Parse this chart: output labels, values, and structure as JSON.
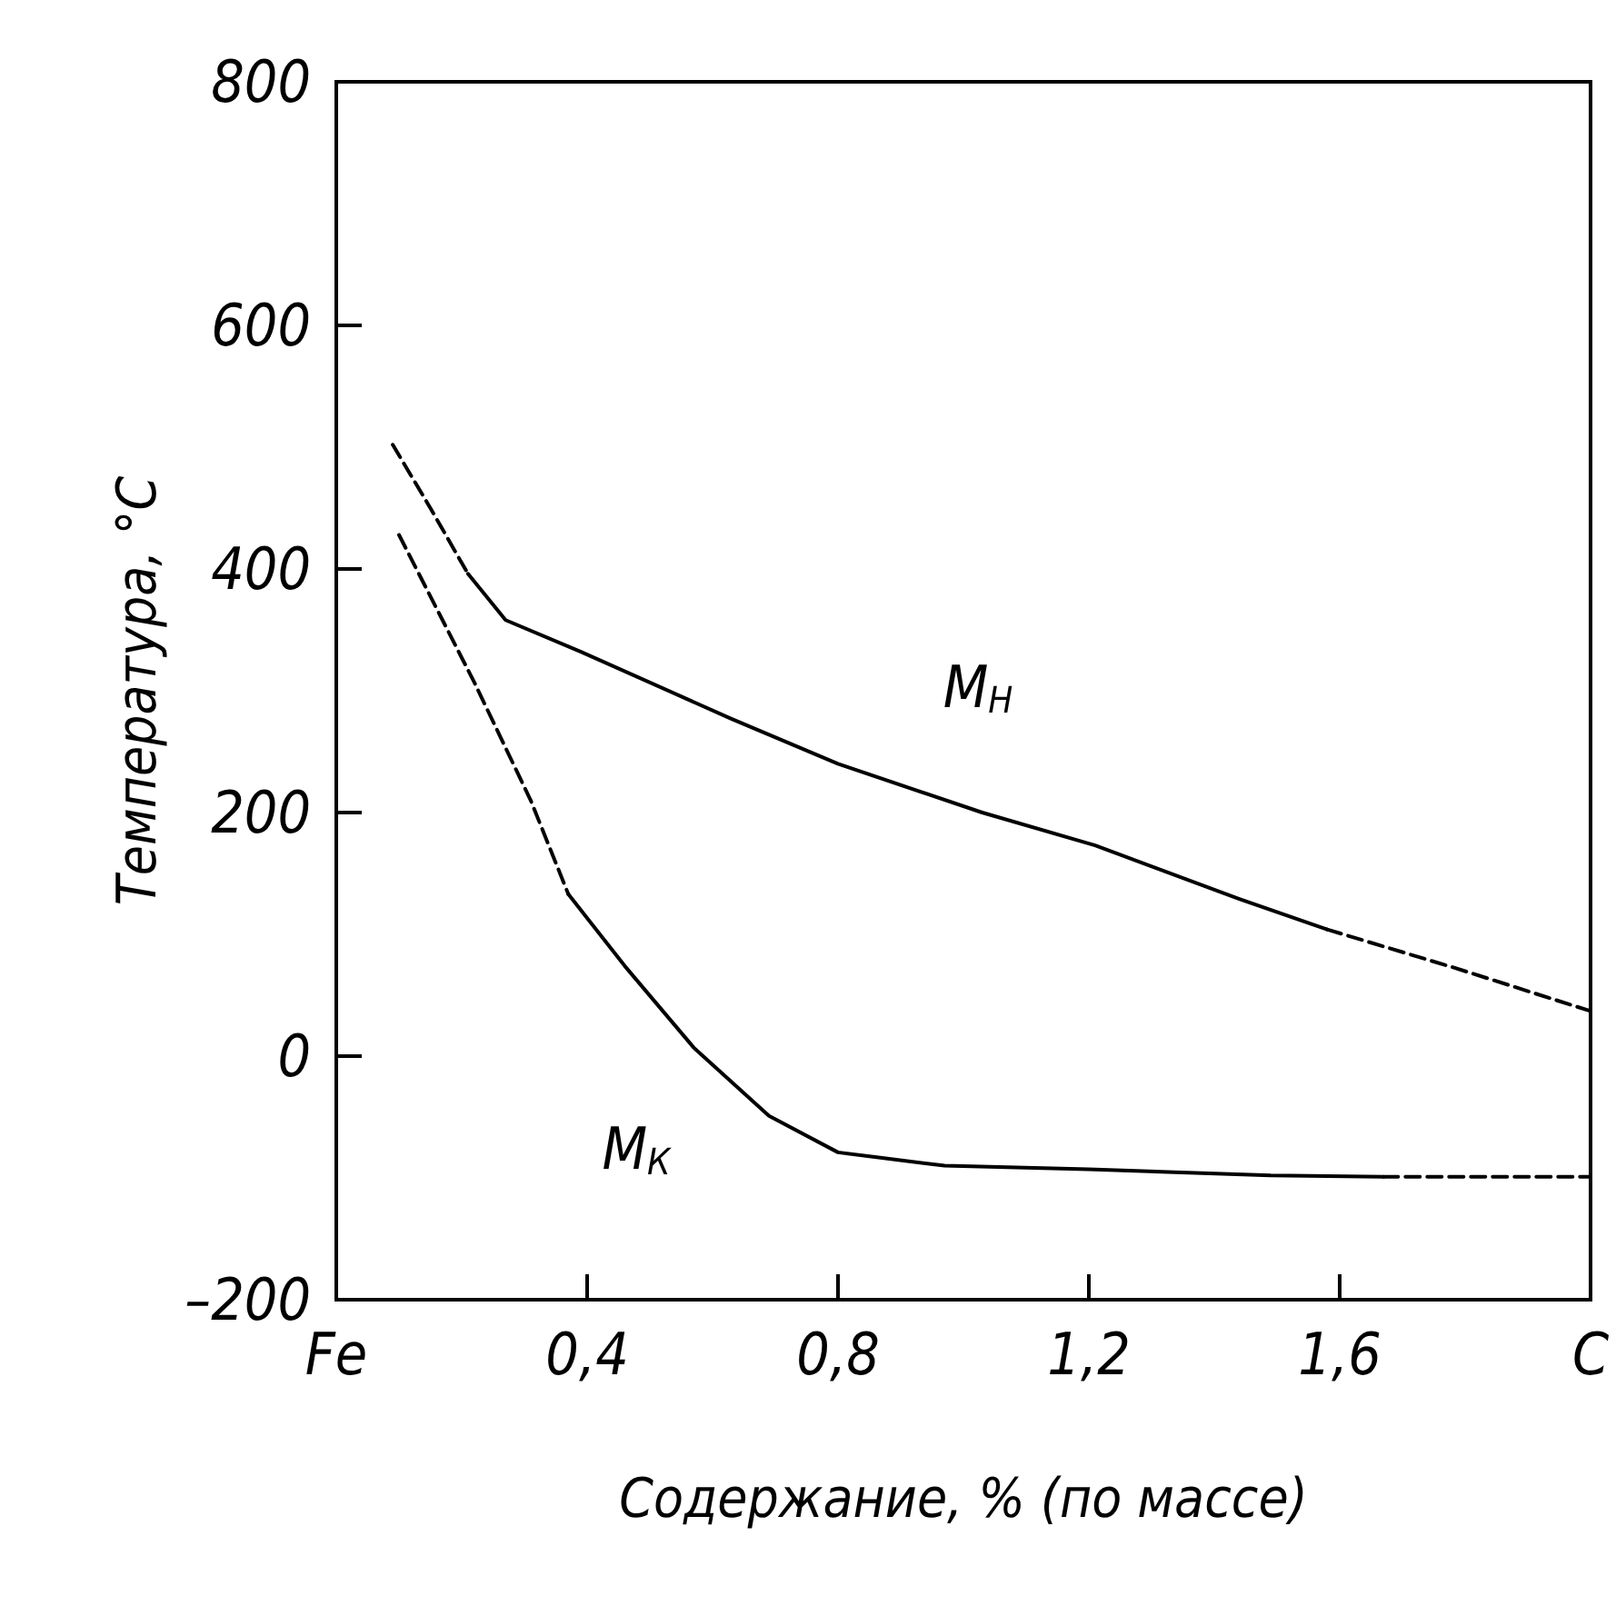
{
  "chart_data": {
    "type": "line",
    "xlabel": "Содержание, % (по массе)",
    "ylabel": "Температура, °С",
    "xlim": [
      0,
      2
    ],
    "xticks": [
      {
        "value": 0,
        "label": "Fe"
      },
      {
        "value": 0.4,
        "label": "0,4"
      },
      {
        "value": 0.8,
        "label": "0,8"
      },
      {
        "value": 1.2,
        "label": "1,2"
      },
      {
        "value": 1.6,
        "label": "1,6"
      },
      {
        "value": 2,
        "label": "C"
      }
    ],
    "ylim": [
      -200,
      800
    ],
    "yticks": [
      {
        "value": -200,
        "label": "–200"
      },
      0,
      200,
      400,
      600,
      800
    ],
    "grid": false,
    "marker": "none",
    "series": [
      {
        "color": "#000000",
        "line_style": "dashed",
        "x": [
          0.09,
          0.15,
          0.21
        ],
        "values": [
          502,
          450,
          396
        ]
      },
      {
        "color": "#000000",
        "line_style": "solid",
        "x": [
          0.21,
          0.27,
          0.39,
          0.63,
          0.8,
          1.03,
          1.21,
          1.44,
          1.58
        ],
        "values": [
          396,
          358,
          332,
          277,
          240,
          200,
          173,
          129,
          104
        ]
      },
      {
        "color": "#000000",
        "line_style": "dashed",
        "x": [
          1.58,
          1.78,
          2.0
        ],
        "values": [
          104,
          73,
          37
        ]
      },
      {
        "color": "#000000",
        "line_style": "dashed",
        "x": [
          0.1,
          0.22,
          0.31,
          0.37
        ],
        "values": [
          428,
          307,
          210,
          133
        ]
      },
      {
        "color": "#000000",
        "line_style": "solid",
        "x": [
          0.37,
          0.46,
          0.57,
          0.69,
          0.8,
          0.97,
          1.2,
          1.49,
          1.67
        ],
        "values": [
          133,
          74,
          7,
          -49,
          -79,
          -90,
          -93,
          -98,
          -99
        ]
      },
      {
        "color": "#000000",
        "line_style": "dashed",
        "x": [
          1.67,
          2.0
        ],
        "values": [
          -99,
          -99
        ]
      }
    ],
    "annotations": [
      "M$_{Н}$",
      "M$_{К}$"
    ]
  }
}
